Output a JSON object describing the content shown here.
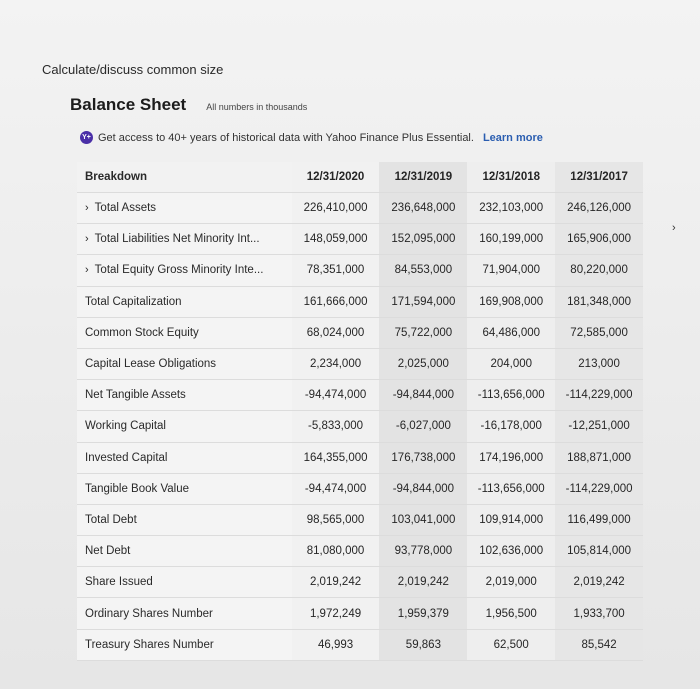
{
  "prompt": "Calculate/discuss common size",
  "heading": {
    "title": "Balance Sheet",
    "subtitle": "All numbers in thousands"
  },
  "promo": {
    "badge": "Y+",
    "text": "Get access to 40+ years of historical data with Yahoo Finance Plus Essential.",
    "link": "Learn more"
  },
  "table": {
    "header": [
      "Breakdown",
      "12/31/2020",
      "12/31/2019",
      "12/31/2018",
      "12/31/2017"
    ],
    "rows": [
      {
        "label": "Total Assets",
        "expandable": true,
        "values": [
          "226,410,000",
          "236,648,000",
          "232,103,000",
          "246,126,000"
        ]
      },
      {
        "label": "Total Liabilities Net Minority Int...",
        "expandable": true,
        "values": [
          "148,059,000",
          "152,095,000",
          "160,199,000",
          "165,906,000"
        ]
      },
      {
        "label": "Total Equity Gross Minority Inte...",
        "expandable": true,
        "values": [
          "78,351,000",
          "84,553,000",
          "71,904,000",
          "80,220,000"
        ]
      },
      {
        "label": "Total Capitalization",
        "expandable": false,
        "values": [
          "161,666,000",
          "171,594,000",
          "169,908,000",
          "181,348,000"
        ]
      },
      {
        "label": "Common Stock Equity",
        "expandable": false,
        "values": [
          "68,024,000",
          "75,722,000",
          "64,486,000",
          "72,585,000"
        ]
      },
      {
        "label": "Capital Lease Obligations",
        "expandable": false,
        "values": [
          "2,234,000",
          "2,025,000",
          "204,000",
          "213,000"
        ]
      },
      {
        "label": "Net Tangible Assets",
        "expandable": false,
        "values": [
          "-94,474,000",
          "-94,844,000",
          "-113,656,000",
          "-114,229,000"
        ]
      },
      {
        "label": "Working Capital",
        "expandable": false,
        "values": [
          "-5,833,000",
          "-6,027,000",
          "-16,178,000",
          "-12,251,000"
        ]
      },
      {
        "label": "Invested Capital",
        "expandable": false,
        "values": [
          "164,355,000",
          "176,738,000",
          "174,196,000",
          "188,871,000"
        ]
      },
      {
        "label": "Tangible Book Value",
        "expandable": false,
        "values": [
          "-94,474,000",
          "-94,844,000",
          "-113,656,000",
          "-114,229,000"
        ]
      },
      {
        "label": "Total Debt",
        "expandable": false,
        "values": [
          "98,565,000",
          "103,041,000",
          "109,914,000",
          "116,499,000"
        ]
      },
      {
        "label": "Net Debt",
        "expandable": false,
        "values": [
          "81,080,000",
          "93,778,000",
          "102,636,000",
          "105,814,000"
        ]
      },
      {
        "label": "Share Issued",
        "expandable": false,
        "values": [
          "2,019,242",
          "2,019,242",
          "2,019,000",
          "2,019,242"
        ]
      },
      {
        "label": "Ordinary Shares Number",
        "expandable": false,
        "values": [
          "1,972,249",
          "1,959,379",
          "1,956,500",
          "1,933,700"
        ]
      },
      {
        "label": "Treasury Shares Number",
        "expandable": false,
        "values": [
          "46,993",
          "59,863",
          "62,500",
          "85,542"
        ]
      }
    ]
  },
  "margin_mark": "›",
  "icons": {
    "expand": "chevron-right-icon",
    "promo": "yahoo-plus-icon"
  }
}
